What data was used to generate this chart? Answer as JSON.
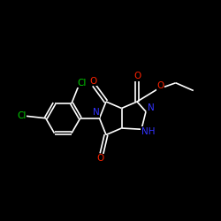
{
  "background_color": "#000000",
  "atom_colors": {
    "N": "#3333ff",
    "O": "#ff2200",
    "Cl": "#00cc00",
    "white": "#ffffff"
  },
  "bond_color": "#ffffff",
  "bond_width": 1.2,
  "figsize": [
    2.5,
    2.5
  ],
  "dpi": 100,
  "xlim": [
    0,
    10
  ],
  "ylim": [
    0,
    10
  ]
}
